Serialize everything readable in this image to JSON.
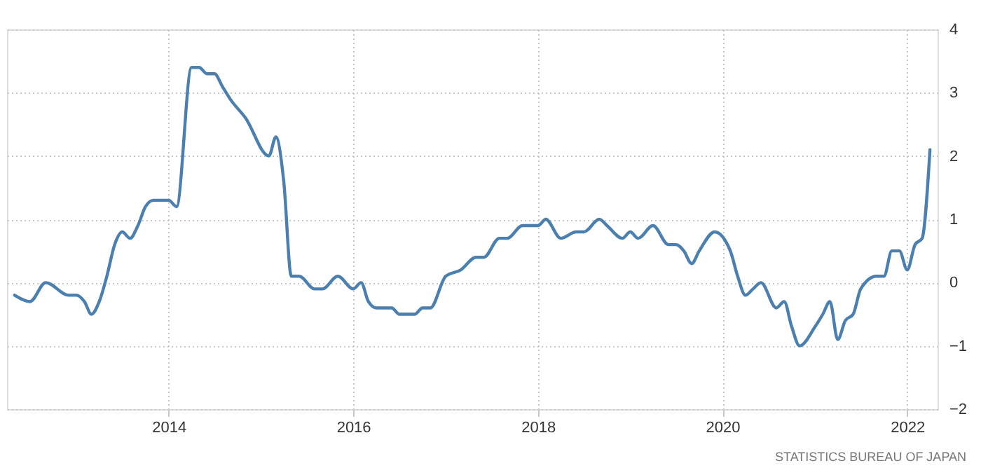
{
  "chart_data": {
    "type": "line",
    "x": [
      "2012-05",
      "2012-07",
      "2012-09",
      "2012-12",
      "2013-01",
      "2013-02",
      "2013-03",
      "2013-04",
      "2013-05",
      "2013-06",
      "2013-07",
      "2013-08",
      "2013-09",
      "2013-10",
      "2013-11",
      "2014-01",
      "2014-02",
      "2014-04",
      "2014-05",
      "2014-06",
      "2014-07",
      "2014-08",
      "2014-09",
      "2014-11",
      "2015-02",
      "2015-03",
      "2015-04",
      "2015-05",
      "2015-06",
      "2015-08",
      "2015-09",
      "2015-11",
      "2016-01",
      "2016-02",
      "2016-03",
      "2016-04",
      "2016-06",
      "2016-07",
      "2016-09",
      "2016-10",
      "2016-11",
      "2017-01",
      "2017-03",
      "2017-05",
      "2017-06",
      "2017-08",
      "2017-09",
      "2017-11",
      "2018-01",
      "2018-02",
      "2018-04",
      "2018-06",
      "2018-07",
      "2018-09",
      "2018-10",
      "2018-12",
      "2019-01",
      "2019-02",
      "2019-04",
      "2019-06",
      "2019-07",
      "2019-08",
      "2019-09",
      "2019-10",
      "2019-12",
      "2020-02",
      "2020-03",
      "2020-04",
      "2020-05",
      "2020-06",
      "2020-08",
      "2020-09",
      "2020-10",
      "2020-11",
      "2021-01",
      "2021-02",
      "2021-03",
      "2021-04",
      "2021-05",
      "2021-06",
      "2021-07",
      "2021-09",
      "2021-10",
      "2021-11",
      "2021-12",
      "2022-01",
      "2022-02",
      "2022-03",
      "2022-04"
    ],
    "series": [
      {
        "color": "#4a7fb0",
        "values": [
          -0.2,
          -0.3,
          0.0,
          -0.2,
          -0.2,
          -0.3,
          -0.5,
          -0.3,
          0.1,
          0.6,
          0.8,
          0.7,
          0.9,
          1.2,
          1.3,
          1.3,
          1.2,
          3.4,
          3.4,
          3.3,
          3.3,
          3.1,
          2.9,
          2.6,
          2.0,
          2.3,
          1.6,
          0.1,
          0.1,
          -0.1,
          -0.1,
          0.1,
          -0.1,
          0.0,
          -0.3,
          -0.4,
          -0.4,
          -0.5,
          -0.5,
          -0.4,
          -0.4,
          0.1,
          0.2,
          0.4,
          0.4,
          0.7,
          0.7,
          0.9,
          0.9,
          1.0,
          0.7,
          0.8,
          0.8,
          1.0,
          0.9,
          0.7,
          0.8,
          0.7,
          0.9,
          0.6,
          0.6,
          0.5,
          0.3,
          0.5,
          0.8,
          0.5,
          0.1,
          -0.2,
          -0.1,
          0.0,
          -0.4,
          -0.3,
          -0.7,
          -1.0,
          -0.7,
          -0.5,
          -0.3,
          -0.9,
          -0.6,
          -0.5,
          -0.1,
          0.1,
          0.1,
          0.5,
          0.5,
          0.2,
          0.6,
          0.7,
          2.1
        ]
      }
    ],
    "xlim": [
      "2012-04",
      "2022-05"
    ],
    "xticks": [
      {
        "value": "2014-01-01",
        "label": "2014"
      },
      {
        "value": "2016-01-01",
        "label": "2016"
      },
      {
        "value": "2018-01-01",
        "label": "2018"
      },
      {
        "value": "2020-01-01",
        "label": "2020"
      },
      {
        "value": "2022-01-01",
        "label": "2022"
      }
    ],
    "ylim": [
      -2,
      4
    ],
    "yticks": [
      -2,
      -1,
      0,
      1,
      2,
      3,
      4
    ],
    "grid": true,
    "line_style": "solid",
    "marker": "none",
    "annotations": [
      "STATISTICS BUREAU OF JAPAN"
    ]
  }
}
